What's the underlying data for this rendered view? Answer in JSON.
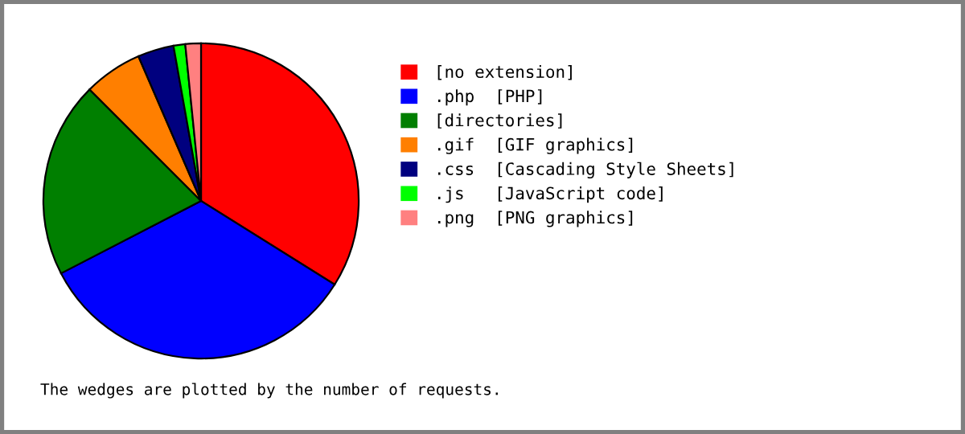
{
  "chart_data": {
    "type": "pie",
    "categories": [
      "[no extension]",
      ".php  [PHP]",
      "[directories]",
      ".gif  [GIF graphics]",
      ".css  [Cascading Style Sheets]",
      ".js   [JavaScript code]",
      ".png  [PNG graphics]"
    ],
    "values": [
      33.9,
      33.5,
      20.1,
      6.0,
      3.7,
      1.2,
      1.6
    ],
    "colors": [
      "#ff0000",
      "#0000ff",
      "#007f00",
      "#ff7f00",
      "#00007f",
      "#00ff00",
      "#ff8080"
    ],
    "legend": "right",
    "annotations": [
      "The wedges are plotted by the number of requests."
    ]
  }
}
